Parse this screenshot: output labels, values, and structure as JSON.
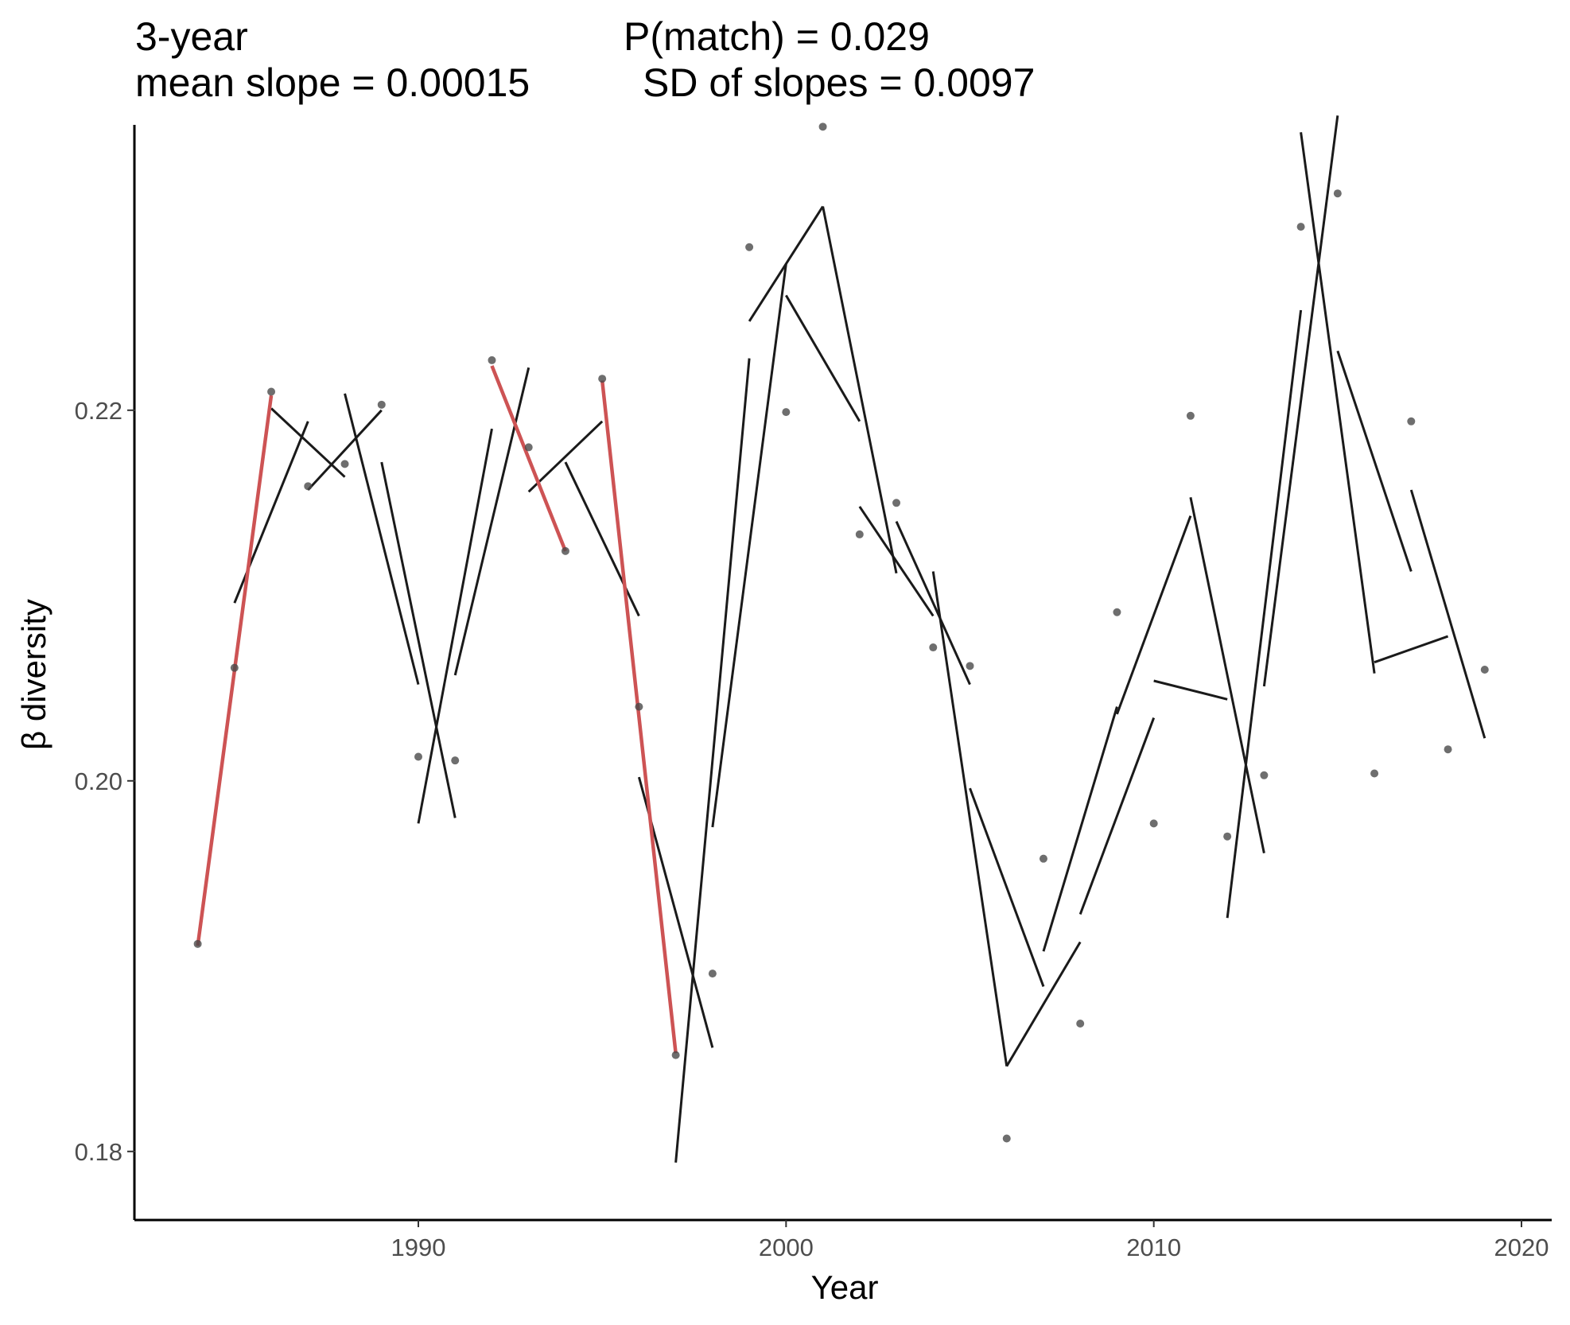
{
  "title": {
    "window": "3-year",
    "p_match": "P(match) = 0.029",
    "mean_slope": "mean slope = 0.00015",
    "sd_slopes": "SD of slopes = 0.0097"
  },
  "chart_data": {
    "type": "scatter",
    "xlabel": "Year",
    "ylabel": "β diversity",
    "xlim": [
      1982.3,
      2020.8
    ],
    "ylim": [
      0.1763,
      0.2354
    ],
    "x_ticks": [
      1990,
      2000,
      2010,
      2020
    ],
    "y_ticks": [
      0.18,
      0.2,
      0.22
    ],
    "y_tick_labels": [
      "0.18",
      "0.20",
      "0.22"
    ],
    "grid": false,
    "colors": {
      "points": "#4a4a4a",
      "segment": "#1a1a1a",
      "highlight": "#cd5354",
      "axis": "#000000"
    },
    "points": [
      {
        "x": 1984,
        "y": 0.1912
      },
      {
        "x": 1985,
        "y": 0.2061
      },
      {
        "x": 1986,
        "y": 0.221
      },
      {
        "x": 1987,
        "y": 0.2159
      },
      {
        "x": 1988,
        "y": 0.2171
      },
      {
        "x": 1989,
        "y": 0.2203
      },
      {
        "x": 1990,
        "y": 0.2013
      },
      {
        "x": 1991,
        "y": 0.2011
      },
      {
        "x": 1992,
        "y": 0.2227
      },
      {
        "x": 1993,
        "y": 0.218
      },
      {
        "x": 1994,
        "y": 0.2124
      },
      {
        "x": 1995,
        "y": 0.2217
      },
      {
        "x": 1996,
        "y": 0.204
      },
      {
        "x": 1997,
        "y": 0.1852
      },
      {
        "x": 1998,
        "y": 0.1896
      },
      {
        "x": 1999,
        "y": 0.2288
      },
      {
        "x": 2000,
        "y": 0.2199
      },
      {
        "x": 2001,
        "y": 0.2353
      },
      {
        "x": 2002,
        "y": 0.2133
      },
      {
        "x": 2003,
        "y": 0.215
      },
      {
        "x": 2004,
        "y": 0.2072
      },
      {
        "x": 2005,
        "y": 0.2062
      },
      {
        "x": 2006,
        "y": 0.1807
      },
      {
        "x": 2007,
        "y": 0.1958
      },
      {
        "x": 2008,
        "y": 0.1869
      },
      {
        "x": 2009,
        "y": 0.2091
      },
      {
        "x": 2010,
        "y": 0.1977
      },
      {
        "x": 2011,
        "y": 0.2197
      },
      {
        "x": 2012,
        "y": 0.197
      },
      {
        "x": 2013,
        "y": 0.2003
      },
      {
        "x": 2014,
        "y": 0.2299
      },
      {
        "x": 2015,
        "y": 0.2317
      },
      {
        "x": 2016,
        "y": 0.2004
      },
      {
        "x": 2017,
        "y": 0.2194
      },
      {
        "x": 2018,
        "y": 0.2017
      },
      {
        "x": 2019,
        "y": 0.206
      }
    ],
    "segments": [
      {
        "x1": 1985,
        "y1": 0.2096,
        "x2": 1987,
        "y2": 0.2194
      },
      {
        "x1": 1986,
        "y1": 0.2201,
        "x2": 1988,
        "y2": 0.2164
      },
      {
        "x1": 1987,
        "y1": 0.2157,
        "x2": 1989,
        "y2": 0.22
      },
      {
        "x1": 1988,
        "y1": 0.2209,
        "x2": 1990,
        "y2": 0.2052
      },
      {
        "x1": 1989,
        "y1": 0.2172,
        "x2": 1991,
        "y2": 0.198
      },
      {
        "x1": 1990,
        "y1": 0.1977,
        "x2": 1992,
        "y2": 0.219
      },
      {
        "x1": 1991,
        "y1": 0.2057,
        "x2": 1993,
        "y2": 0.2223
      },
      {
        "x1": 1993,
        "y1": 0.2156,
        "x2": 1995,
        "y2": 0.2194
      },
      {
        "x1": 1994,
        "y1": 0.2172,
        "x2": 1996,
        "y2": 0.2089
      },
      {
        "x1": 1996,
        "y1": 0.2002,
        "x2": 1998,
        "y2": 0.1856
      },
      {
        "x1": 1997,
        "y1": 0.1794,
        "x2": 1999,
        "y2": 0.2228
      },
      {
        "x1": 1998,
        "y1": 0.1975,
        "x2": 2000,
        "y2": 0.2279
      },
      {
        "x1": 1999,
        "y1": 0.2248,
        "x2": 2001,
        "y2": 0.231
      },
      {
        "x1": 2000,
        "y1": 0.2262,
        "x2": 2002,
        "y2": 0.2194
      },
      {
        "x1": 2001,
        "y1": 0.231,
        "x2": 2003,
        "y2": 0.2112
      },
      {
        "x1": 2002,
        "y1": 0.2148,
        "x2": 2004,
        "y2": 0.2089
      },
      {
        "x1": 2003,
        "y1": 0.214,
        "x2": 2005,
        "y2": 0.2052
      },
      {
        "x1": 2004,
        "y1": 0.2113,
        "x2": 2006,
        "y2": 0.1846
      },
      {
        "x1": 2005,
        "y1": 0.1996,
        "x2": 2007,
        "y2": 0.1889
      },
      {
        "x1": 2006,
        "y1": 0.1846,
        "x2": 2008,
        "y2": 0.1913
      },
      {
        "x1": 2007,
        "y1": 0.1908,
        "x2": 2009,
        "y2": 0.204
      },
      {
        "x1": 2008,
        "y1": 0.1928,
        "x2": 2010,
        "y2": 0.2034
      },
      {
        "x1": 2009,
        "y1": 0.2036,
        "x2": 2011,
        "y2": 0.2143
      },
      {
        "x1": 2010,
        "y1": 0.2054,
        "x2": 2012,
        "y2": 0.2044
      },
      {
        "x1": 2011,
        "y1": 0.2153,
        "x2": 2013,
        "y2": 0.1961
      },
      {
        "x1": 2012,
        "y1": 0.1926,
        "x2": 2014,
        "y2": 0.2254
      },
      {
        "x1": 2013,
        "y1": 0.2051,
        "x2": 2015,
        "y2": 0.2359
      },
      {
        "x1": 2014,
        "y1": 0.235,
        "x2": 2016,
        "y2": 0.2058
      },
      {
        "x1": 2015,
        "y1": 0.2232,
        "x2": 2017,
        "y2": 0.2113
      },
      {
        "x1": 2016,
        "y1": 0.2064,
        "x2": 2018,
        "y2": 0.2078
      },
      {
        "x1": 2017,
        "y1": 0.2157,
        "x2": 2019,
        "y2": 0.2023
      }
    ],
    "highlighted_segments": [
      {
        "x1": 1984,
        "y1": 0.1911,
        "x2": 1986,
        "y2": 0.2208
      },
      {
        "x1": 1992,
        "y1": 0.2224,
        "x2": 1994,
        "y2": 0.2124
      },
      {
        "x1": 1995,
        "y1": 0.2216,
        "x2": 1997,
        "y2": 0.1853
      }
    ]
  }
}
